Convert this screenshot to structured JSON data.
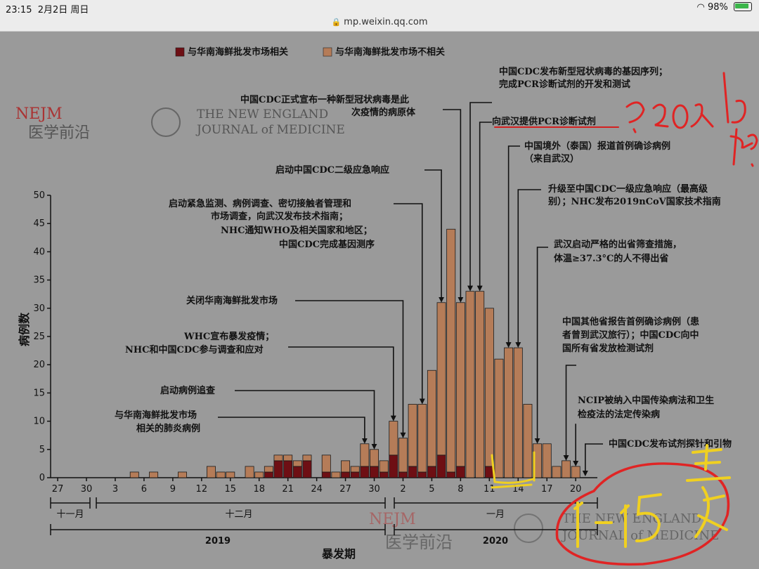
{
  "status": {
    "time": "23:15",
    "date": "2月2日 周日",
    "battery": "98%"
  },
  "browser": {
    "url": "mp.weixin.qq.com"
  },
  "brand": {
    "nejm_logo": "NEJM",
    "nejm_cn": "医学前沿",
    "journal_line1": "THE NEW ENGLAND",
    "journal_line2": "JOURNAL of MEDICINE"
  },
  "legend": {
    "related": "与华南海鲜批发市场相关",
    "unrelated": "与华南海鲜批发市场不相关"
  },
  "colors": {
    "related": "#6e0f14",
    "unrelated": "#b57c58",
    "background": "#9a9a9a"
  },
  "chart_data": {
    "type": "bar",
    "stacked": true,
    "ylabel": "病例数",
    "xlabel": "暴发期",
    "ylim": [
      0,
      50
    ],
    "yticks": [
      0,
      5,
      10,
      15,
      20,
      25,
      30,
      35,
      40,
      45,
      50
    ],
    "xticks": [
      "27",
      "30",
      "3",
      "6",
      "9",
      "12",
      "15",
      "18",
      "21",
      "24",
      "27",
      "30",
      "2",
      "5",
      "8",
      "11",
      "14",
      "17",
      "20"
    ],
    "months": [
      "十一月",
      "十二月",
      "一月"
    ],
    "years": [
      "2019",
      "2020"
    ],
    "categories": [
      "11-27",
      "11-28",
      "11-29",
      "11-30",
      "12-01",
      "12-02",
      "12-03",
      "12-04",
      "12-05",
      "12-06",
      "12-07",
      "12-08",
      "12-09",
      "12-10",
      "12-11",
      "12-12",
      "12-13",
      "12-14",
      "12-15",
      "12-16",
      "12-17",
      "12-18",
      "12-19",
      "12-20",
      "12-21",
      "12-22",
      "12-23",
      "12-24",
      "12-25",
      "12-26",
      "12-27",
      "12-28",
      "12-29",
      "12-30",
      "12-31",
      "01-01",
      "01-02",
      "01-03",
      "01-04",
      "01-05",
      "01-06",
      "01-07",
      "01-08",
      "01-09",
      "01-10",
      "01-11",
      "01-12",
      "01-13",
      "01-14",
      "01-15",
      "01-16",
      "01-17",
      "01-18",
      "01-19",
      "01-20",
      "01-21",
      "01-22"
    ],
    "series": [
      {
        "name": "与华南海鲜批发市场相关",
        "values": [
          0,
          0,
          0,
          0,
          0,
          0,
          0,
          0,
          0,
          0,
          0,
          0,
          0,
          0,
          0,
          0,
          0,
          0,
          0,
          0,
          0,
          0,
          1,
          3,
          3,
          2,
          3,
          0,
          1,
          0,
          1,
          1,
          2,
          2,
          1,
          4,
          1,
          2,
          1,
          2,
          4,
          1,
          2,
          0,
          0,
          2,
          0,
          0,
          0,
          0,
          0,
          0,
          0,
          0,
          0,
          0,
          0
        ]
      },
      {
        "name": "与华南海鲜批发市场不相关",
        "values": [
          0,
          0,
          0,
          0,
          0,
          0,
          0,
          0,
          1,
          0,
          1,
          0,
          0,
          1,
          0,
          0,
          2,
          1,
          1,
          0,
          2,
          1,
          1,
          1,
          1,
          1,
          1,
          0,
          3,
          1,
          2,
          1,
          4,
          3,
          2,
          6,
          6,
          11,
          12,
          17,
          27,
          43,
          29,
          33,
          33,
          28,
          21,
          23,
          23,
          13,
          6,
          6,
          2,
          3,
          2,
          0,
          0
        ]
      }
    ],
    "annotations": [
      "中国CDC发布新型冠状病毒的基因序列；完成PCR诊断试剂的开发和测试",
      "中国CDC正式宣布一种新型冠状病毒是此次疫情的病原体",
      "向武汉提供PCR诊断试剂",
      "中国境外（泰国）报道首例确诊病例（来自武汉）",
      "启动中国CDC二级应急响应",
      "升级至中国CDC一级应急响应（最高级别）；NHC发布2019nCoV国家技术指南",
      "启动紧急监测、病例调查、密切接触者管理和市场调查，向武汉发布技术指南；NHC通知WHO及相关国家和地区；中国CDC完成基因测序",
      "武汉启动严格的出省筛查措施，体温≥37.3°C的人不得出省",
      "关闭华南海鲜批发市场",
      "中国其他省报告首例确诊病例（患者曾到武汉旅行）；中国CDC向中国所有省发放检测试剂",
      "WHC宣布暴发疫情；NHC和中国CDC参与调查和应对",
      "启动病例追查",
      "NCIP被纳入中国传染病法和卫生检疫法的法定传染病",
      "与华南海鲜批发市场相关的肺炎病例",
      "中国CDC发布试剂探针和引物"
    ]
  }
}
